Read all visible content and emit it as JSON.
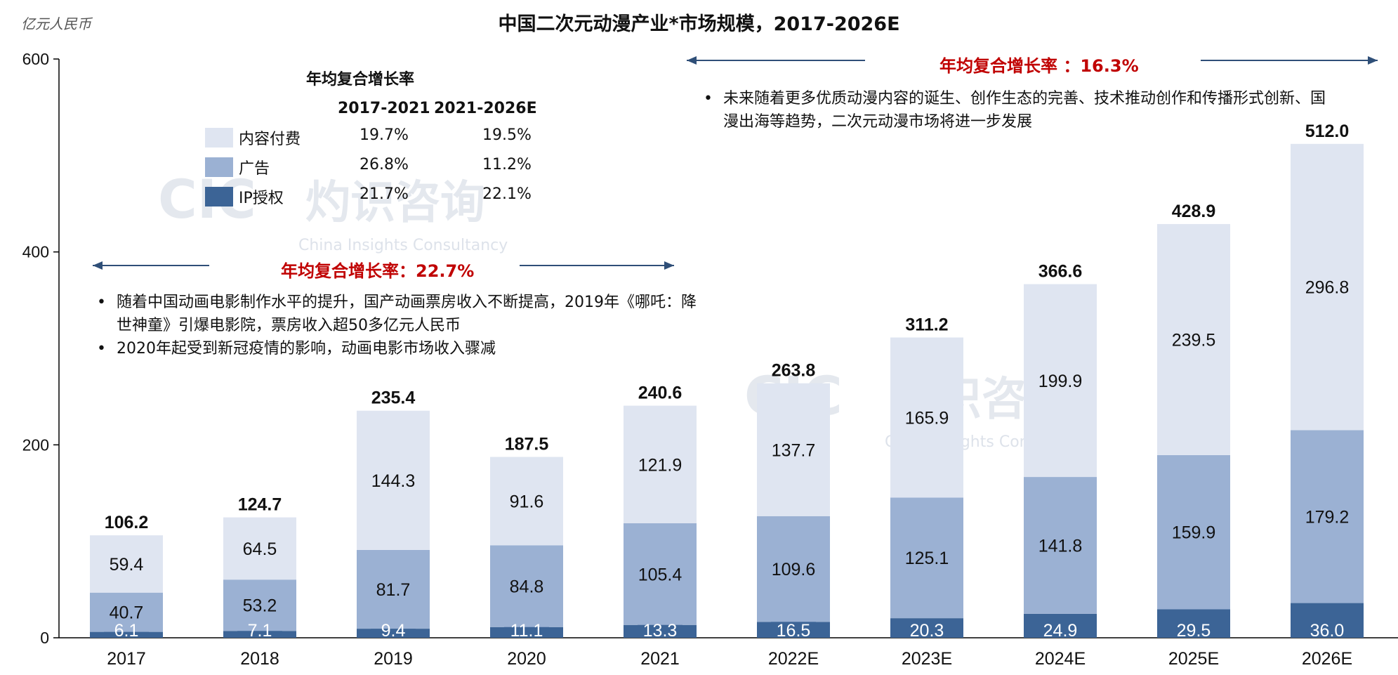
{
  "unit_label": "亿元人民币",
  "title": "中国二次元动漫产业*市场规模，2017-2026E",
  "colors": {
    "content": "#dfe5f1",
    "ads": "#9bb1d3",
    "ip": "#3c6496",
    "arrow": "#2f4f78",
    "cagr": "#c00000"
  },
  "cagr_2017_2021": {
    "label": "年均复合增长率：22.7%"
  },
  "cagr_2021_2026": {
    "label": "年均复合增长率 ：16.3%"
  },
  "bullets_left": [
    "随着中国动画电影制作水平的提升，国产动画票房收入不断提高，2019年《哪吒：降世神童》引爆电影院，票房收入超50多亿元人民币",
    "2020年起受到新冠疫情的影响，动画电影市场收入骤减"
  ],
  "bullets_right": [
    "未来随着更多优质动漫内容的诞生、创作生态的完善、技术推动创作和传播形式创新、国漫出海等趋势，二次元动漫市场将进一步发展"
  ],
  "cagr_table": {
    "title": "年均复合增长率",
    "col1": "2017-2021",
    "col2": "2021-2026E",
    "rows": [
      {
        "label": "内容付费",
        "v1": "19.7%",
        "v2": "19.5%",
        "color": "#dfe5f1"
      },
      {
        "label": "广告",
        "v1": "26.8%",
        "v2": "11.2%",
        "color": "#9bb1d3"
      },
      {
        "label": "IP授权",
        "v1": "21.7%",
        "v2": "22.1%",
        "color": "#3c6496"
      }
    ]
  },
  "watermark": {
    "logo": "CIC",
    "cn": "灼识咨询",
    "en": "China Insights Consultancy"
  },
  "chart_data": {
    "type": "bar",
    "stacked": true,
    "categories": [
      "2017",
      "2018",
      "2019",
      "2020",
      "2021",
      "2022E",
      "2023E",
      "2024E",
      "2025E",
      "2026E"
    ],
    "series": [
      {
        "name": "IP授权",
        "values": [
          6.1,
          7.1,
          9.4,
          11.1,
          13.3,
          16.5,
          20.3,
          24.9,
          29.5,
          36.0
        ]
      },
      {
        "name": "广告",
        "values": [
          40.7,
          53.2,
          81.7,
          84.8,
          105.4,
          109.6,
          125.1,
          141.8,
          159.9,
          179.2
        ]
      },
      {
        "name": "内容付费",
        "values": [
          59.4,
          64.5,
          144.3,
          91.6,
          121.9,
          137.7,
          165.9,
          199.9,
          239.5,
          296.8
        ]
      }
    ],
    "totals": [
      106.2,
      124.7,
      235.4,
      187.5,
      240.6,
      263.8,
      311.2,
      366.6,
      428.9,
      512.0
    ],
    "ylim": [
      0,
      600
    ],
    "yticks": [
      0,
      200,
      400,
      600
    ]
  }
}
